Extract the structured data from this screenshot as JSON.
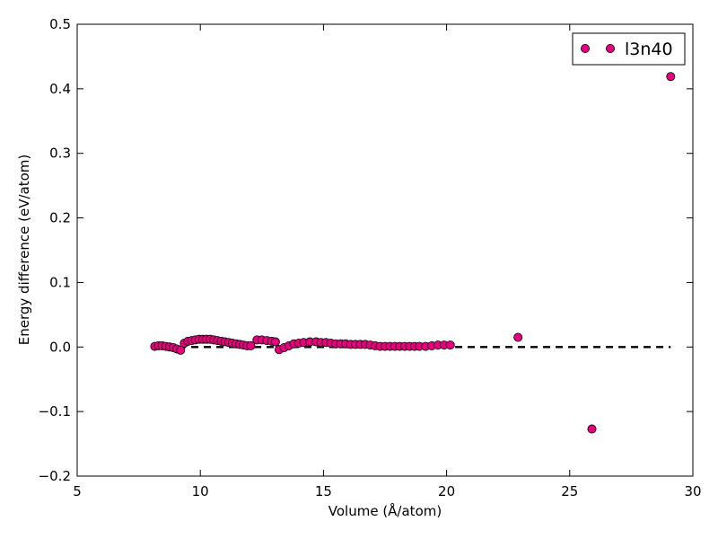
{
  "chart_data": {
    "type": "scatter",
    "xlabel": "Volume (Å/atom)",
    "ylabel": "Energy difference (eV/atom)",
    "xlim": [
      5,
      30
    ],
    "ylim": [
      -0.2,
      0.5
    ],
    "xticks": [
      5,
      10,
      15,
      20,
      25,
      30
    ],
    "xtick_labels": [
      "5",
      "10",
      "15",
      "20",
      "25",
      "30"
    ],
    "yticks": [
      -0.2,
      -0.1,
      0.0,
      0.1,
      0.2,
      0.3,
      0.4,
      0.5
    ],
    "ytick_labels": [
      "−0.2",
      "−0.1",
      "0.0",
      "0.1",
      "0.2",
      "0.3",
      "0.4",
      "0.5"
    ],
    "grid": false,
    "legend_position": "top-right",
    "series": [
      {
        "name": "l3n40",
        "marker": "circle",
        "color": "#e6007e",
        "edge_color": "#000000",
        "points": [
          [
            8.15,
            0.001
          ],
          [
            8.3,
            0.002
          ],
          [
            8.45,
            0.002
          ],
          [
            8.6,
            0.001
          ],
          [
            8.75,
            0.0
          ],
          [
            8.9,
            -0.001
          ],
          [
            9.05,
            -0.003
          ],
          [
            9.2,
            -0.005
          ],
          [
            9.35,
            0.006
          ],
          [
            9.5,
            0.009
          ],
          [
            9.65,
            0.01
          ],
          [
            9.8,
            0.011
          ],
          [
            9.95,
            0.012
          ],
          [
            10.1,
            0.012
          ],
          [
            10.25,
            0.012
          ],
          [
            10.4,
            0.012
          ],
          [
            10.55,
            0.011
          ],
          [
            10.7,
            0.01
          ],
          [
            10.85,
            0.009
          ],
          [
            11.0,
            0.008
          ],
          [
            11.15,
            0.007
          ],
          [
            11.3,
            0.006
          ],
          [
            11.45,
            0.005
          ],
          [
            11.6,
            0.004
          ],
          [
            11.75,
            0.003
          ],
          [
            11.9,
            0.002
          ],
          [
            12.05,
            0.002
          ],
          [
            12.3,
            0.011
          ],
          [
            12.5,
            0.011
          ],
          [
            12.7,
            0.01
          ],
          [
            12.9,
            0.009
          ],
          [
            13.05,
            0.008
          ],
          [
            13.2,
            -0.004
          ],
          [
            13.4,
            -0.001
          ],
          [
            13.6,
            0.002
          ],
          [
            13.8,
            0.005
          ],
          [
            14.0,
            0.006
          ],
          [
            14.2,
            0.007
          ],
          [
            14.45,
            0.008
          ],
          [
            14.7,
            0.008
          ],
          [
            14.9,
            0.007
          ],
          [
            15.1,
            0.007
          ],
          [
            15.3,
            0.006
          ],
          [
            15.5,
            0.005
          ],
          [
            15.7,
            0.005
          ],
          [
            15.9,
            0.005
          ],
          [
            16.1,
            0.004
          ],
          [
            16.3,
            0.004
          ],
          [
            16.5,
            0.004
          ],
          [
            16.7,
            0.004
          ],
          [
            16.9,
            0.003
          ],
          [
            17.1,
            0.002
          ],
          [
            17.3,
            0.001
          ],
          [
            17.5,
            0.001
          ],
          [
            17.7,
            0.001
          ],
          [
            17.9,
            0.001
          ],
          [
            18.1,
            0.001
          ],
          [
            18.3,
            0.001
          ],
          [
            18.5,
            0.001
          ],
          [
            18.7,
            0.001
          ],
          [
            18.9,
            0.001
          ],
          [
            19.15,
            0.001
          ],
          [
            19.4,
            0.002
          ],
          [
            19.65,
            0.003
          ],
          [
            19.9,
            0.003
          ],
          [
            20.15,
            0.003
          ],
          [
            22.9,
            0.015
          ],
          [
            25.9,
            -0.127
          ],
          [
            29.1,
            0.419
          ]
        ]
      }
    ],
    "reference_line": {
      "y": 0.0,
      "x_range": [
        8.1,
        29.1
      ],
      "style": "dashed",
      "color": "#000000"
    }
  }
}
